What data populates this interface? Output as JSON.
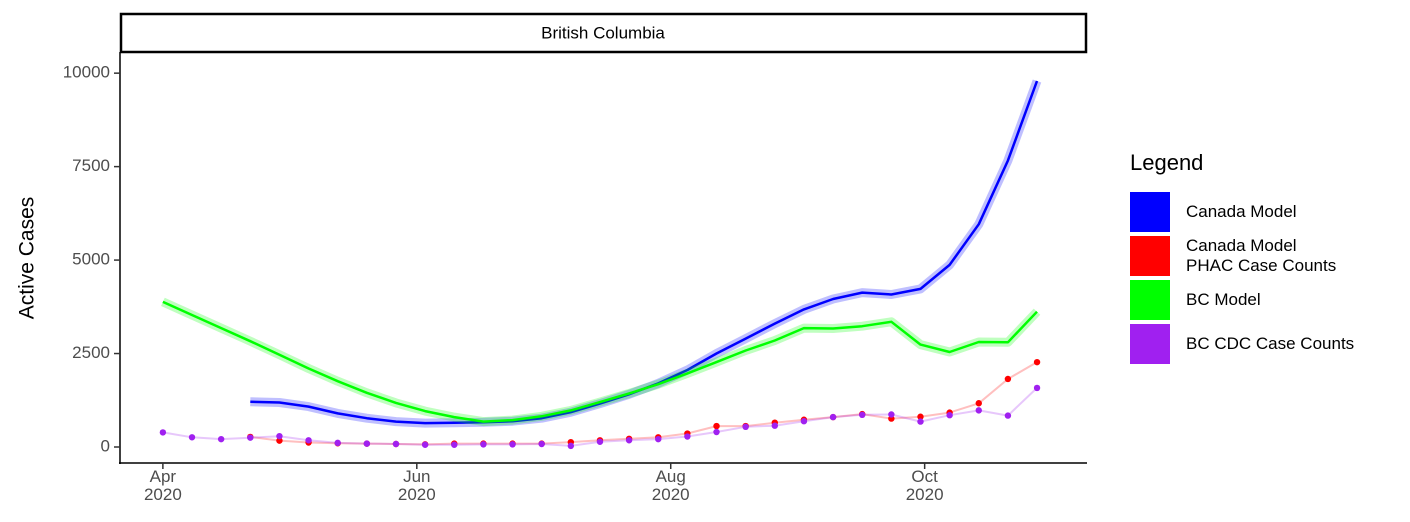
{
  "chart_data": {
    "type": "line",
    "panel_title": "British Columbia",
    "y_label": "Active Cases",
    "legend_title": "Legend",
    "legend_position": "right",
    "x": [
      0,
      7,
      14,
      21,
      28,
      35,
      42,
      49,
      56,
      63,
      70,
      77,
      84,
      91,
      98,
      105,
      112,
      119,
      126,
      133,
      140,
      147,
      154,
      161,
      168,
      175,
      182,
      189,
      196,
      203,
      210
    ],
    "xlim": [
      -10.3,
      222
    ],
    "xticks": [
      {
        "value": 0,
        "label": "Apr\n2020"
      },
      {
        "value": 61,
        "label": "Jun\n2020"
      },
      {
        "value": 122,
        "label": "Aug\n2020"
      },
      {
        "value": 183,
        "label": "Oct\n2020"
      }
    ],
    "ylim": [
      -428,
      10566
    ],
    "yticks": [
      0,
      2500,
      5000,
      7500,
      10000
    ],
    "series": [
      {
        "name": "Canada Model",
        "color": "#0000ff",
        "style": "line",
        "values": [
          null,
          null,
          null,
          1210,
          1190,
          1080,
          900,
          770,
          680,
          640,
          650,
          660,
          690,
          770,
          930,
          1160,
          1410,
          1700,
          2060,
          2500,
          2900,
          3300,
          3680,
          3960,
          4130,
          4080,
          4230,
          4870,
          5960,
          7660,
          9790
        ]
      },
      {
        "name": "Canada Model\nPHAC Case Counts",
        "color": "#ff0000",
        "style": "points",
        "values": [
          null,
          null,
          null,
          270,
          170,
          120,
          100,
          90,
          80,
          70,
          90,
          90,
          90,
          90,
          130,
          180,
          220,
          260,
          360,
          560,
          560,
          650,
          730,
          800,
          880,
          760,
          810,
          920,
          1170,
          1820,
          2270
        ]
      },
      {
        "name": "BC Model",
        "color": "#00ff00",
        "style": "line",
        "values": [
          3880,
          3530,
          3180,
          2830,
          2470,
          2100,
          1760,
          1450,
          1180,
          960,
          800,
          680,
          720,
          820,
          980,
          1200,
          1430,
          1680,
          1970,
          2270,
          2580,
          2850,
          3180,
          3170,
          3230,
          3350,
          2740,
          2540,
          2810,
          2800,
          3620
        ]
      },
      {
        "name": "BC CDC Case Counts",
        "color": "#a020f0",
        "style": "points",
        "values": [
          390,
          260,
          210,
          250,
          290,
          180,
          110,
          90,
          80,
          60,
          60,
          70,
          70,
          80,
          30,
          140,
          180,
          210,
          280,
          400,
          540,
          570,
          690,
          800,
          860,
          870,
          680,
          850,
          980,
          840,
          1580
        ]
      }
    ]
  }
}
